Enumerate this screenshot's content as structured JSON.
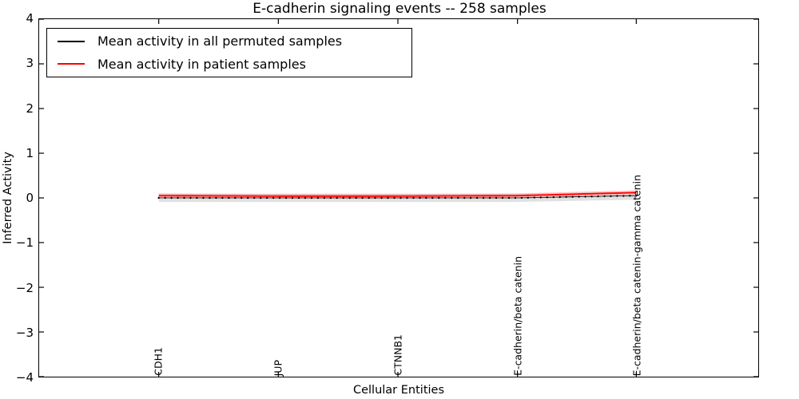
{
  "chart_data": {
    "type": "line",
    "title": "E-cadherin signaling events -- 258 samples",
    "xlabel": "Cellular Entities",
    "ylabel": "Inferred Activity",
    "ylim": [
      -4,
      4
    ],
    "yticks": [
      "4",
      "3",
      "2",
      "1",
      "0",
      "−1",
      "−2",
      "−3",
      "−4"
    ],
    "ytick_values": [
      4,
      3,
      2,
      1,
      0,
      -1,
      -2,
      -3,
      -4
    ],
    "categories": [
      "CDH1",
      "JUP",
      "CTNNB1",
      "E-cadherin/beta catenin",
      "E-cadherin/beta catenin-gamma catenin"
    ],
    "num_points": 76,
    "grid": false,
    "legend_position": "upper left",
    "series": [
      {
        "name": "Mean activity in all permuted samples",
        "color": "#000000",
        "style": "dotted-markers",
        "values": [
          0.0,
          0.0,
          0.0,
          0.0,
          0.05
        ],
        "band_halfwidth": 0.09,
        "band_color": "#c9c9c9"
      },
      {
        "name": "Mean activity in patient samples",
        "color": "#ff0000",
        "style": "solid",
        "values": [
          0.05,
          0.04,
          0.04,
          0.05,
          0.12
        ],
        "band_halfwidth": 0.05,
        "band_color": "#ff9999"
      }
    ]
  }
}
